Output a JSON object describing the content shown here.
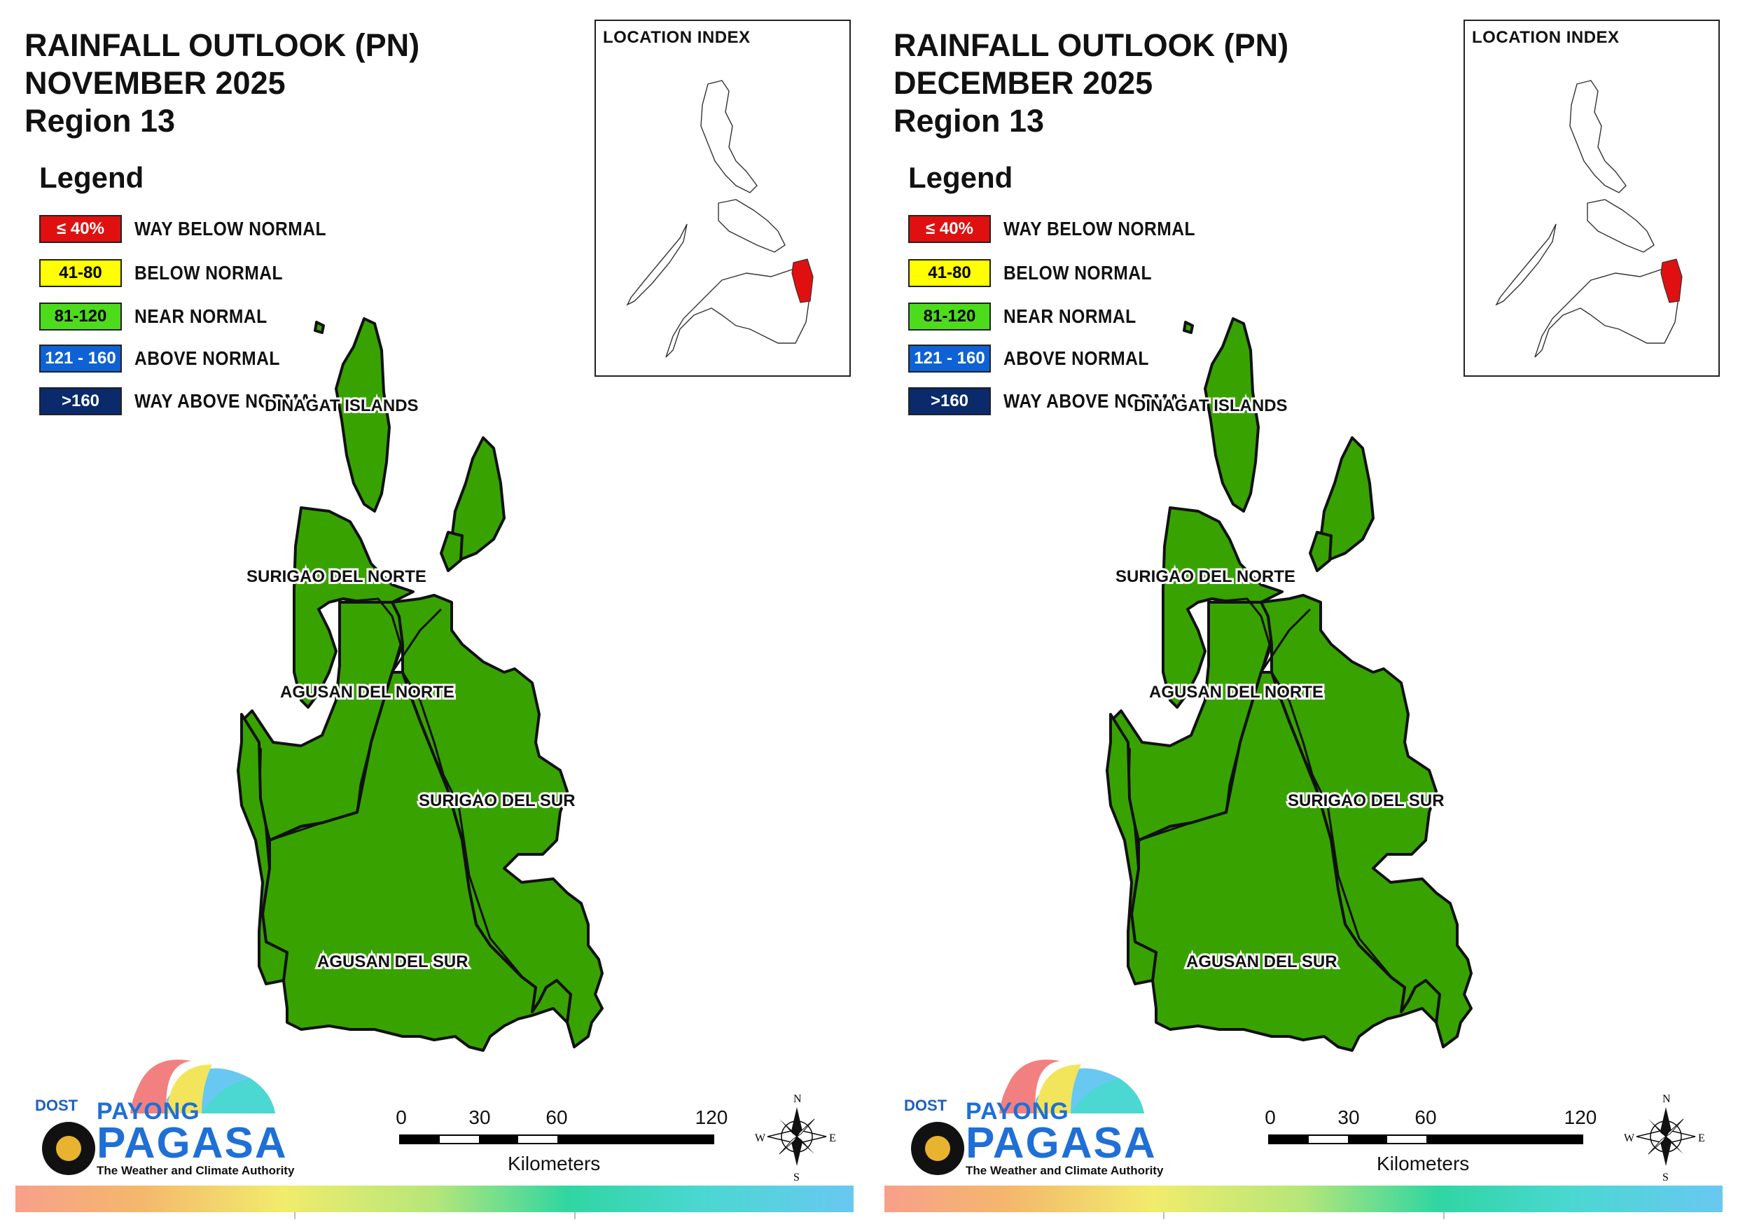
{
  "panels": [
    {
      "title_line1": "RAINFALL OUTLOOK (PN)",
      "title_line2": "NOVEMBER 2025",
      "title_line3": "Region 13",
      "inset_title": "LOCATION INDEX"
    },
    {
      "title_line1": "RAINFALL OUTLOOK (PN)",
      "title_line2": "DECEMBER 2025",
      "title_line3": "Region 13",
      "inset_title": "LOCATION INDEX"
    }
  ],
  "legend": {
    "title": "Legend",
    "categories": [
      {
        "range": "≤ 40%",
        "label": "WAY BELOW NORMAL",
        "color": "#e01010",
        "text_color": "#ffffff"
      },
      {
        "range": "41-80",
        "label": "BELOW NORMAL",
        "color": "#ffff00",
        "text_color": "#000000"
      },
      {
        "range": "81-120",
        "label": "NEAR NORMAL",
        "color": "#4ddc1c",
        "text_color": "#000000"
      },
      {
        "range": "121 - 160",
        "label": "ABOVE NORMAL",
        "color": "#0f61d6",
        "text_color": "#ffffff"
      },
      {
        "range": ">160",
        "label": "WAY ABOVE NORMAL",
        "color": "#0a2a6b",
        "text_color": "#ffffff"
      }
    ]
  },
  "provinces": {
    "dinagat": "DINAGAT ISLANDS",
    "surigao_norte": "SURIGAO DEL NORTE",
    "agusan_norte": "AGUSAN DEL NORTE",
    "surigao_sur": "SURIGAO DEL SUR",
    "agusan_sur": "AGUSAN DEL SUR",
    "fill_color": "#38a300"
  },
  "scale": {
    "ticks": [
      "0",
      "30",
      "60",
      "120"
    ],
    "unit": "Kilometers"
  },
  "compass": {
    "n": "N",
    "s": "S",
    "e": "E",
    "w": "W"
  },
  "logo": {
    "dost": "DOST",
    "payong": "PAYONG",
    "pagasa": "PAGASA",
    "tagline": "The Weather and Climate Authority"
  }
}
